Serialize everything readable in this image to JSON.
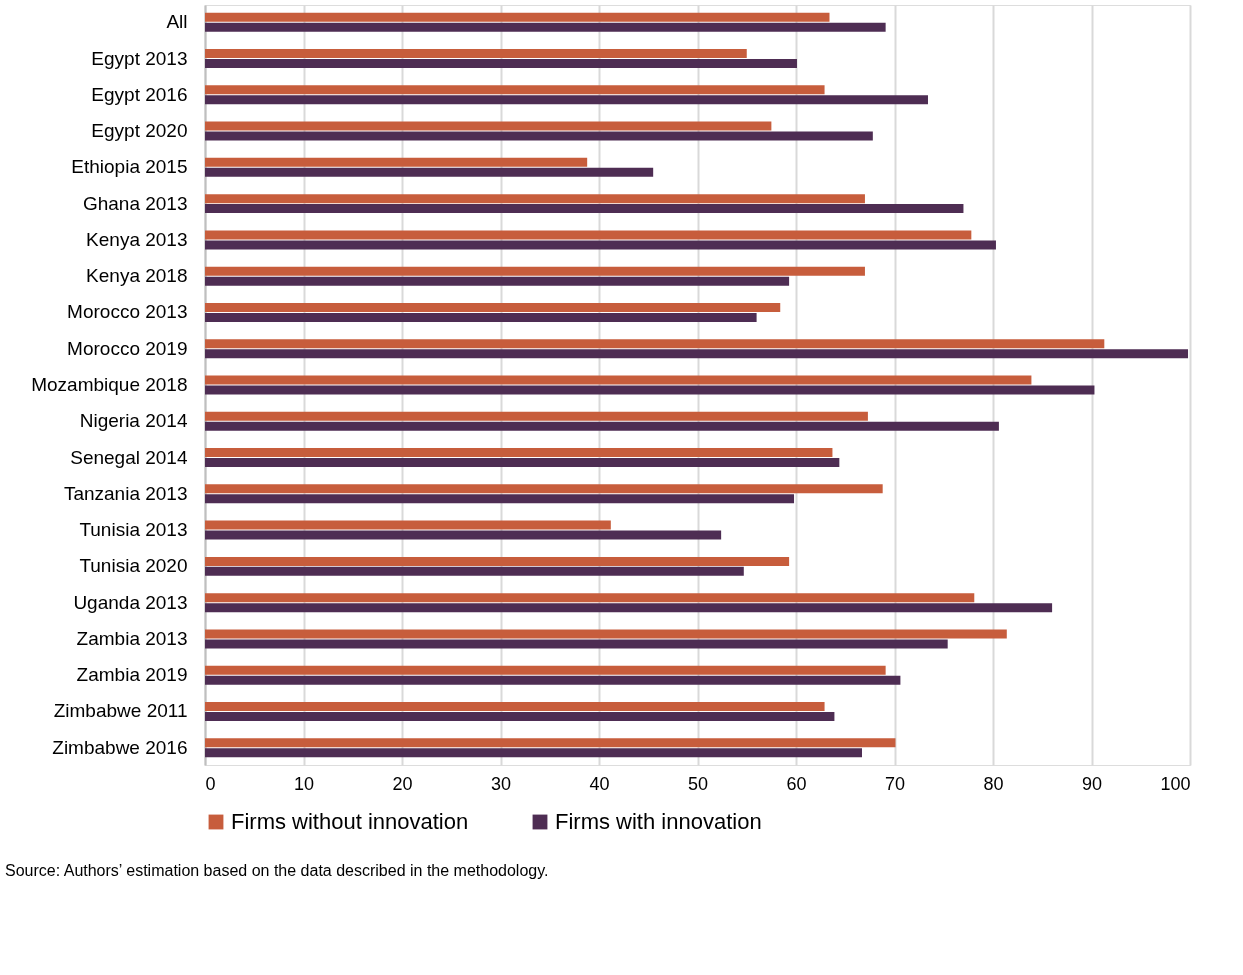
{
  "chart_data": {
    "type": "bar",
    "orientation": "horizontal",
    "categories": [
      "All",
      "Egypt 2013",
      "Egypt 2016",
      "Egypt 2020",
      "Ethiopia 2015",
      "Ghana 2013",
      "Kenya 2013",
      "Kenya 2018",
      "Morocco 2013",
      "Morocco 2019",
      "Mozambique 2018",
      "Nigeria 2014",
      "Senegal 2014",
      "Tanzania 2013",
      "Tunisia 2013",
      "Tunisia 2020",
      "Uganda 2013",
      "Zambia 2013",
      "Zambia 2019",
      "Zimbabwe 2011",
      "Zimbabwe 2016"
    ],
    "series": [
      {
        "name": "Firms without innovation",
        "color": "#c75d3c",
        "values": [
          63.4,
          55.0,
          62.9,
          57.5,
          38.8,
          67.0,
          77.8,
          67.0,
          58.4,
          91.3,
          83.9,
          67.3,
          63.7,
          68.8,
          41.2,
          59.3,
          78.1,
          81.4,
          69.1,
          62.9,
          70.1
        ]
      },
      {
        "name": "Firms with innovation",
        "color": "#4e2d53",
        "values": [
          69.1,
          60.1,
          73.4,
          67.8,
          45.5,
          77.0,
          80.3,
          59.3,
          56.0,
          99.8,
          90.3,
          80.6,
          64.4,
          59.8,
          52.4,
          54.7,
          86.0,
          75.4,
          70.6,
          63.9,
          66.7
        ]
      }
    ],
    "xlim": [
      0,
      100
    ],
    "xticks": [
      0,
      10,
      20,
      30,
      40,
      50,
      60,
      70,
      80,
      90,
      100
    ],
    "grid": "x",
    "legend": "bottom",
    "annotations": [
      "Source: Authors’ estimation based on the data described in the methodology."
    ]
  }
}
